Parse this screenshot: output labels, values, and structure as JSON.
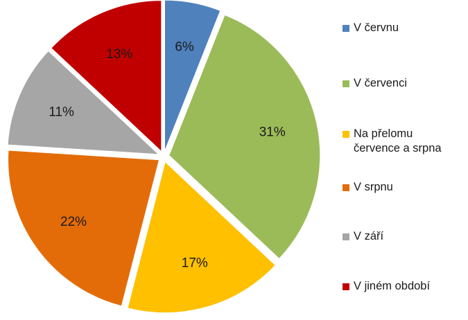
{
  "chart_data": {
    "type": "pie",
    "title": "",
    "legend_position": "right",
    "slices": [
      {
        "name": "V červnu",
        "value": 6,
        "label": "6%",
        "color": "#4F81BD"
      },
      {
        "name": "V červenci",
        "value": 31,
        "label": "31%",
        "color": "#9BBB59"
      },
      {
        "name": "Na přelomu\nčervence a srpna",
        "value": 17,
        "label": "17%",
        "color": "#FFC000"
      },
      {
        "name": "V srpnu",
        "value": 22,
        "label": "22%",
        "color": "#E36C09"
      },
      {
        "name": "V září",
        "value": 11,
        "label": "11%",
        "color": "#A6A6A6"
      },
      {
        "name": "V jiném období",
        "value": 13,
        "label": "13%",
        "color": "#C00000"
      }
    ]
  }
}
